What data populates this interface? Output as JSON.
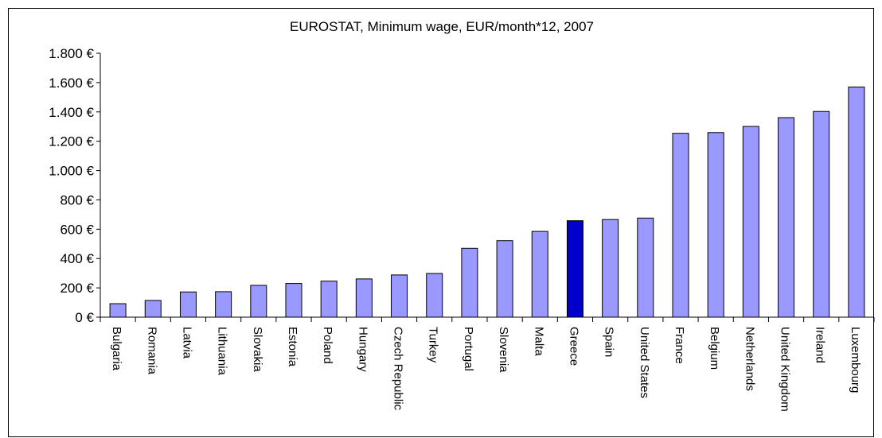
{
  "chart_data": {
    "type": "bar",
    "title": "EUROSTAT, Minimum wage, EUR/month*12, 2007",
    "xlabel": "",
    "ylabel": "",
    "ylim": [
      0,
      1800
    ],
    "ytick_values": [
      0,
      200,
      400,
      600,
      800,
      1000,
      1200,
      1400,
      1600,
      1800
    ],
    "ytick_labels": [
      "0 €",
      "200 €",
      "400 €",
      "600 €",
      "800 €",
      "1.000 €",
      "1.200 €",
      "1.400 €",
      "1.600 €",
      "1.800 €"
    ],
    "grid": false,
    "legend": "none",
    "categories": [
      "Bulgaria",
      "Romania",
      "Latvia",
      "Lithuania",
      "Slovakia",
      "Estonia",
      "Poland",
      "Hungary",
      "Czech Republic",
      "Turkey",
      "Portugal",
      "Slovenia",
      "Malta",
      "Greece",
      "Spain",
      "United States",
      "France",
      "Belgium",
      "Netherlands",
      "United Kingdom",
      "Ireland",
      "Luxembourg"
    ],
    "values": [
      92,
      114,
      172,
      174,
      217,
      230,
      246,
      261,
      288,
      298,
      470,
      522,
      585,
      658,
      666,
      676,
      1254,
      1259,
      1301,
      1361,
      1403,
      1570
    ],
    "highlight_category": "Greece",
    "colors": {
      "bar": "#9999ff",
      "highlight": "#0000cc",
      "axis": "#000000"
    }
  }
}
